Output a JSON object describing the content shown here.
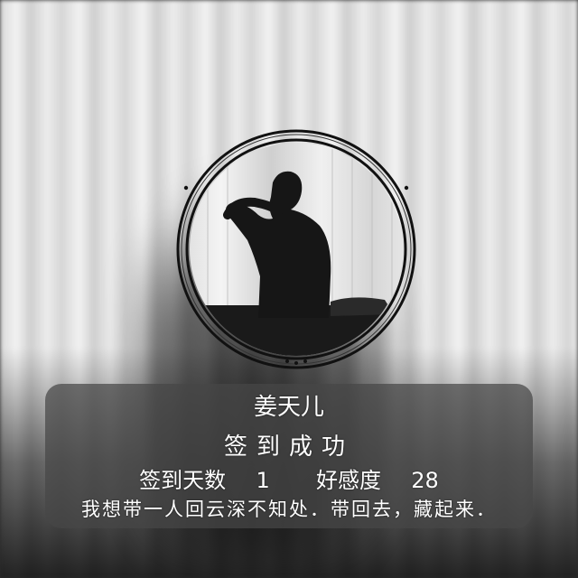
{
  "profile": {
    "name": "姜天儿",
    "avatar_icon": "silhouette-photo-icon"
  },
  "checkin": {
    "headline": "签到成功",
    "days_label": "签到天数",
    "days_value": "1",
    "favor_label": "好感度",
    "favor_value": "28",
    "motto": "我想带一人回云深不知处．带回去，藏起来．"
  },
  "colors": {
    "text": "#ffffff",
    "card_bg": "#464646"
  }
}
